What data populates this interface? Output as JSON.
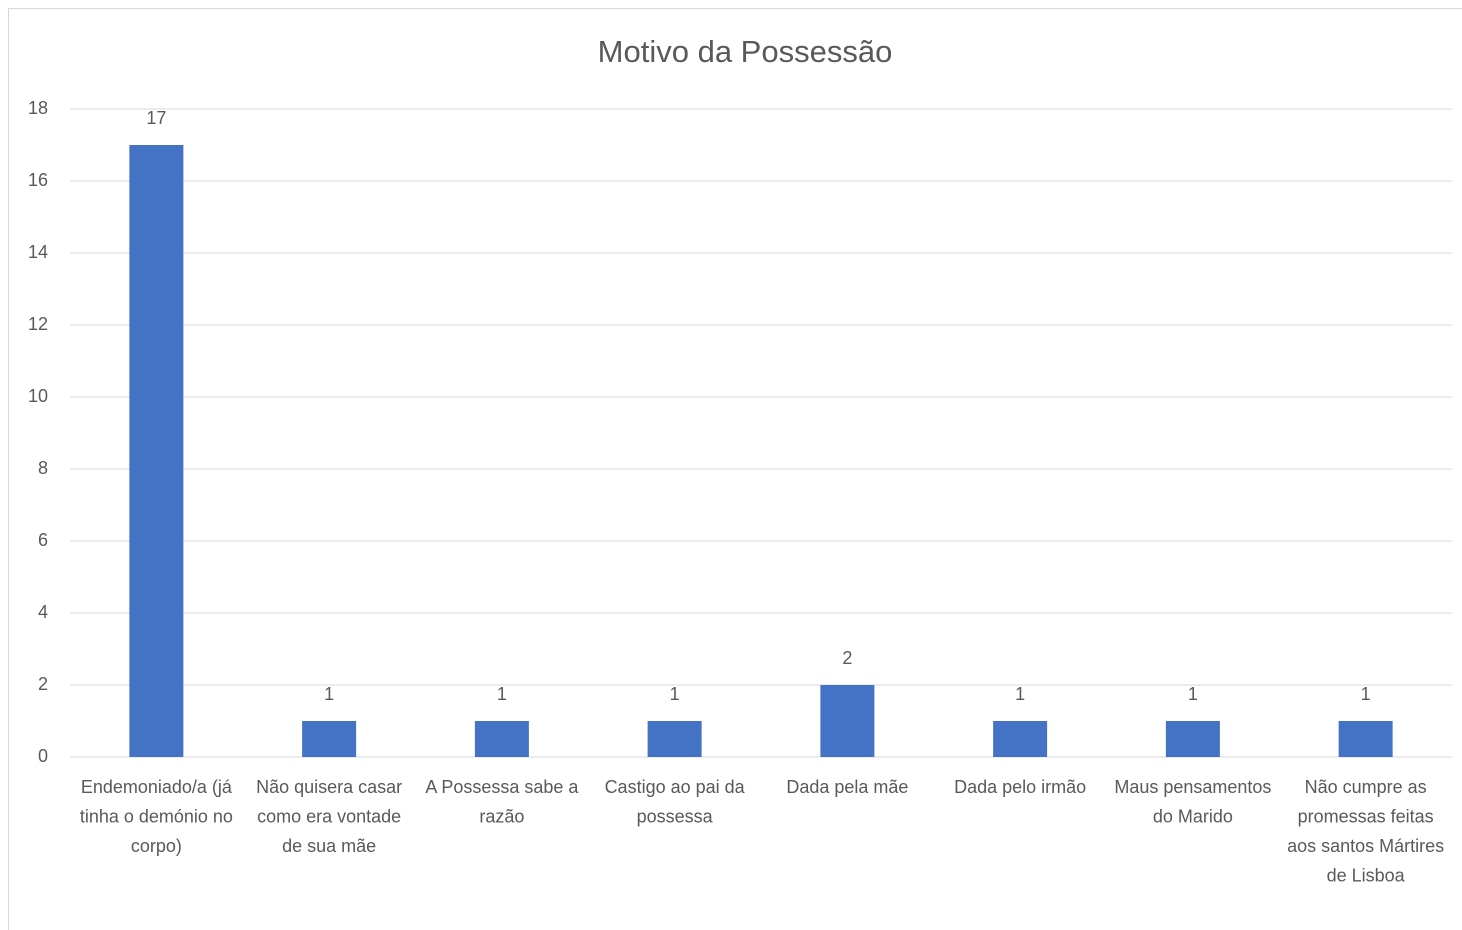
{
  "chart_data": {
    "type": "bar",
    "title": "Motivo da Possessão",
    "categories": [
      "Endemoniado/a (já tinha o demónio no corpo)",
      "Não quisera casar como era vontade de sua mãe",
      "A Possessa sabe a razão",
      "Castigo ao pai da possessa",
      "Dada pela mãe",
      "Dada pelo irmão",
      "Maus pensamentos do Marido",
      "Não cumpre as promessas feitas aos santos Mártires de Lisboa"
    ],
    "values": [
      17,
      1,
      1,
      1,
      2,
      1,
      1,
      1
    ],
    "color": "#4472c4",
    "ylim": [
      0,
      18
    ],
    "yticks": [
      0,
      2,
      4,
      6,
      8,
      10,
      12,
      14,
      16,
      18
    ],
    "grid": true
  }
}
